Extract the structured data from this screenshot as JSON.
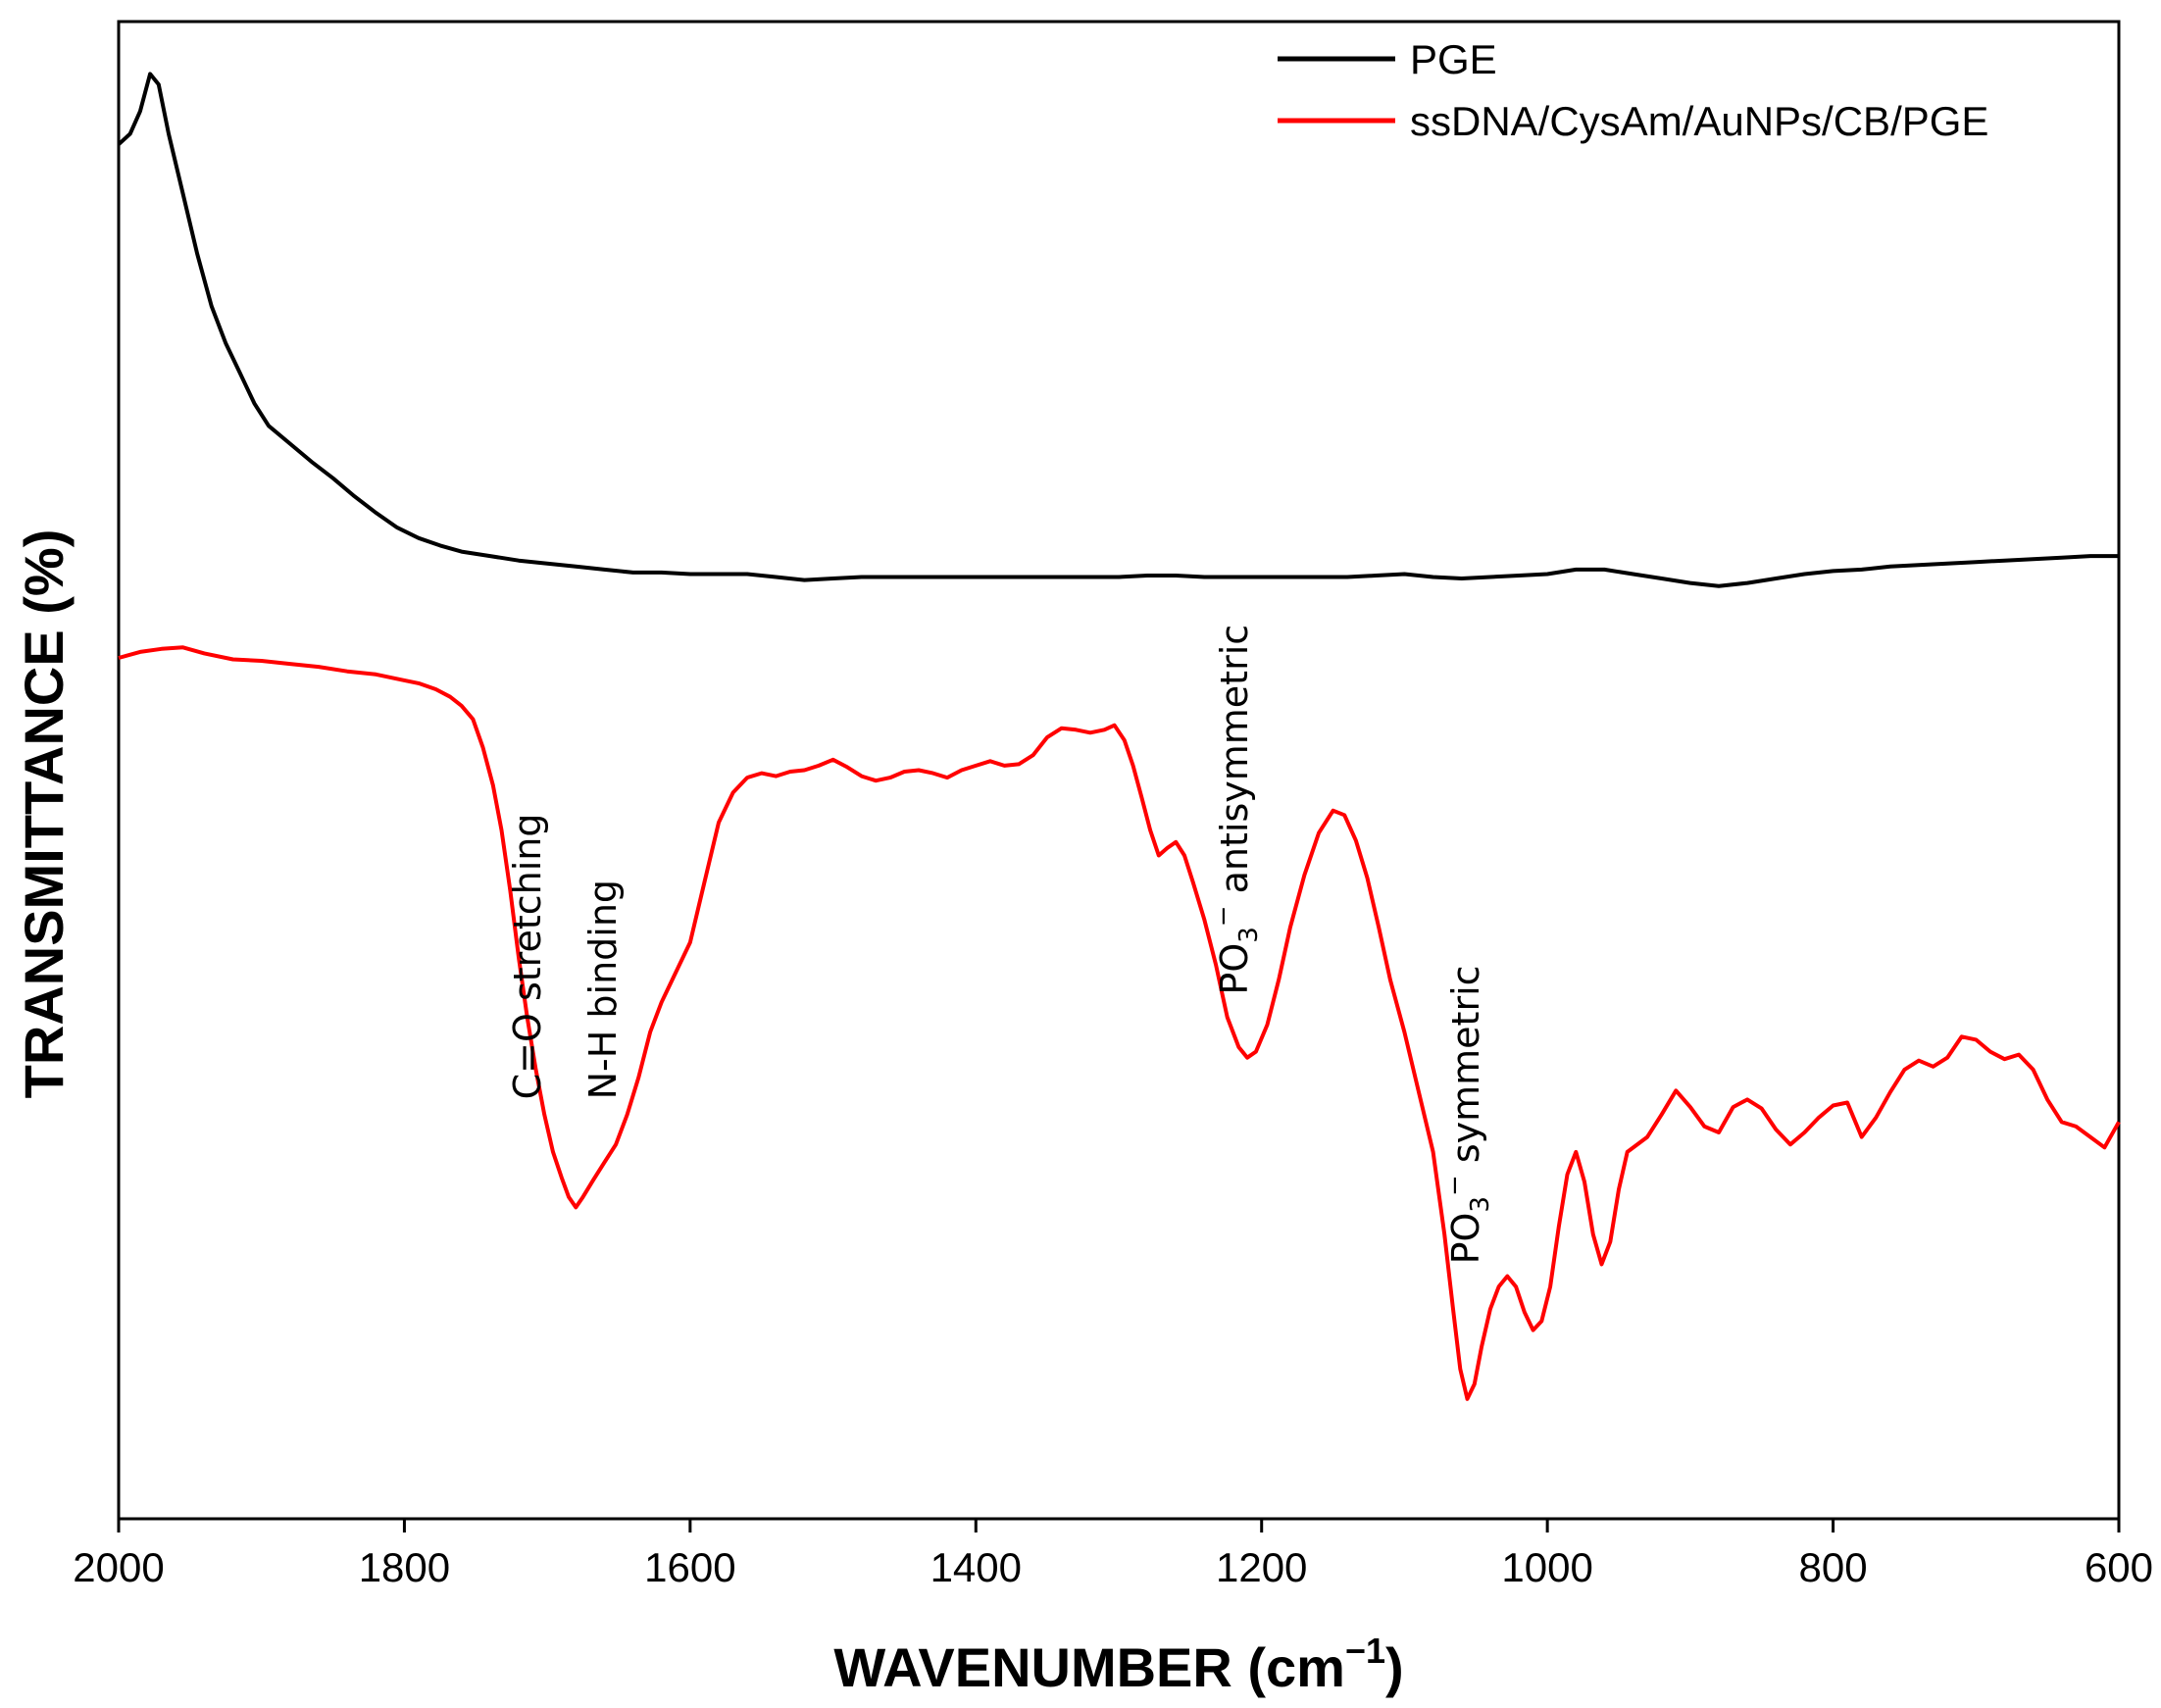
{
  "chart_data": {
    "type": "line",
    "title": "",
    "xlabel": "WAVENUMBER (cm",
    "xlabel_sup": "−1",
    "xlabel_close": ")",
    "ylabel": "TRANSMITTANCE (%)",
    "xlim": [
      2000,
      600
    ],
    "ylim": [
      0,
      100
    ],
    "x_ticks": [
      2000,
      1800,
      1600,
      1400,
      1200,
      1000,
      800,
      600
    ],
    "x_tick_labels": [
      "2000",
      "1800",
      "1600",
      "1400",
      "1200",
      "1000",
      "800",
      "600"
    ],
    "grid": false,
    "legend_position": "top-right",
    "series": [
      {
        "name": "PGE",
        "color": "#000000",
        "points": [
          [
            2000,
            91.8
          ],
          [
            1992,
            92.5
          ],
          [
            1985,
            94.0
          ],
          [
            1978,
            96.5
          ],
          [
            1972,
            95.8
          ],
          [
            1965,
            92.5
          ],
          [
            1955,
            88.5
          ],
          [
            1945,
            84.5
          ],
          [
            1935,
            81.0
          ],
          [
            1925,
            78.5
          ],
          [
            1915,
            76.5
          ],
          [
            1905,
            74.5
          ],
          [
            1895,
            73.0
          ],
          [
            1880,
            71.8
          ],
          [
            1865,
            70.6
          ],
          [
            1850,
            69.5
          ],
          [
            1835,
            68.3
          ],
          [
            1820,
            67.2
          ],
          [
            1805,
            66.2
          ],
          [
            1790,
            65.5
          ],
          [
            1775,
            65.0
          ],
          [
            1760,
            64.6
          ],
          [
            1740,
            64.3
          ],
          [
            1720,
            64.0
          ],
          [
            1700,
            63.8
          ],
          [
            1680,
            63.6
          ],
          [
            1660,
            63.4
          ],
          [
            1640,
            63.2
          ],
          [
            1620,
            63.2
          ],
          [
            1600,
            63.1
          ],
          [
            1580,
            63.1
          ],
          [
            1560,
            63.1
          ],
          [
            1540,
            62.9
          ],
          [
            1520,
            62.7
          ],
          [
            1500,
            62.8
          ],
          [
            1480,
            62.9
          ],
          [
            1460,
            62.9
          ],
          [
            1440,
            62.9
          ],
          [
            1420,
            62.9
          ],
          [
            1400,
            62.9
          ],
          [
            1380,
            62.9
          ],
          [
            1360,
            62.9
          ],
          [
            1340,
            62.9
          ],
          [
            1320,
            62.9
          ],
          [
            1300,
            62.9
          ],
          [
            1280,
            63.0
          ],
          [
            1260,
            63.0
          ],
          [
            1240,
            62.9
          ],
          [
            1220,
            62.9
          ],
          [
            1200,
            62.9
          ],
          [
            1180,
            62.9
          ],
          [
            1160,
            62.9
          ],
          [
            1140,
            62.9
          ],
          [
            1120,
            63.0
          ],
          [
            1100,
            63.1
          ],
          [
            1080,
            62.9
          ],
          [
            1060,
            62.8
          ],
          [
            1040,
            62.9
          ],
          [
            1020,
            63.0
          ],
          [
            1000,
            63.1
          ],
          [
            980,
            63.4
          ],
          [
            960,
            63.4
          ],
          [
            940,
            63.1
          ],
          [
            920,
            62.8
          ],
          [
            900,
            62.5
          ],
          [
            880,
            62.3
          ],
          [
            860,
            62.5
          ],
          [
            840,
            62.8
          ],
          [
            820,
            63.1
          ],
          [
            800,
            63.3
          ],
          [
            780,
            63.4
          ],
          [
            760,
            63.6
          ],
          [
            740,
            63.7
          ],
          [
            720,
            63.8
          ],
          [
            700,
            63.9
          ],
          [
            680,
            64.0
          ],
          [
            660,
            64.1
          ],
          [
            640,
            64.2
          ],
          [
            620,
            64.3
          ],
          [
            600,
            64.3
          ]
        ]
      },
      {
        "name": "ssDNA/CysAm/AuNPs/CB/PGE",
        "color": "#ff0000",
        "points": [
          [
            2000,
            57.5
          ],
          [
            1985,
            57.9
          ],
          [
            1970,
            58.1
          ],
          [
            1955,
            58.2
          ],
          [
            1940,
            57.8
          ],
          [
            1920,
            57.4
          ],
          [
            1900,
            57.3
          ],
          [
            1880,
            57.1
          ],
          [
            1860,
            56.9
          ],
          [
            1840,
            56.6
          ],
          [
            1820,
            56.4
          ],
          [
            1800,
            56.0
          ],
          [
            1790,
            55.8
          ],
          [
            1778,
            55.4
          ],
          [
            1768,
            54.9
          ],
          [
            1760,
            54.3
          ],
          [
            1752,
            53.4
          ],
          [
            1745,
            51.5
          ],
          [
            1738,
            49.0
          ],
          [
            1732,
            46.0
          ],
          [
            1726,
            42.0
          ],
          [
            1720,
            37.5
          ],
          [
            1714,
            33.5
          ],
          [
            1708,
            30.0
          ],
          [
            1702,
            27.0
          ],
          [
            1696,
            24.5
          ],
          [
            1690,
            22.8
          ],
          [
            1685,
            21.5
          ],
          [
            1680,
            20.8
          ],
          [
            1675,
            21.5
          ],
          [
            1668,
            22.6
          ],
          [
            1660,
            23.8
          ],
          [
            1652,
            25.0
          ],
          [
            1644,
            27.0
          ],
          [
            1636,
            29.5
          ],
          [
            1628,
            32.5
          ],
          [
            1620,
            34.5
          ],
          [
            1610,
            36.5
          ],
          [
            1600,
            38.5
          ],
          [
            1590,
            42.5
          ],
          [
            1580,
            46.5
          ],
          [
            1570,
            48.5
          ],
          [
            1560,
            49.5
          ],
          [
            1550,
            49.8
          ],
          [
            1540,
            49.6
          ],
          [
            1530,
            49.9
          ],
          [
            1520,
            50.0
          ],
          [
            1510,
            50.3
          ],
          [
            1500,
            50.7
          ],
          [
            1490,
            50.2
          ],
          [
            1480,
            49.6
          ],
          [
            1470,
            49.3
          ],
          [
            1460,
            49.5
          ],
          [
            1450,
            49.9
          ],
          [
            1440,
            50.0
          ],
          [
            1430,
            49.8
          ],
          [
            1420,
            49.5
          ],
          [
            1410,
            50.0
          ],
          [
            1400,
            50.3
          ],
          [
            1390,
            50.6
          ],
          [
            1380,
            50.3
          ],
          [
            1370,
            50.4
          ],
          [
            1360,
            51.0
          ],
          [
            1350,
            52.2
          ],
          [
            1340,
            52.8
          ],
          [
            1330,
            52.7
          ],
          [
            1320,
            52.5
          ],
          [
            1310,
            52.7
          ],
          [
            1303,
            53.0
          ],
          [
            1296,
            52.0
          ],
          [
            1290,
            50.3
          ],
          [
            1284,
            48.2
          ],
          [
            1278,
            46.0
          ],
          [
            1272,
            44.3
          ],
          [
            1266,
            44.8
          ],
          [
            1260,
            45.2
          ],
          [
            1254,
            44.3
          ],
          [
            1248,
            42.5
          ],
          [
            1240,
            40.0
          ],
          [
            1232,
            37.0
          ],
          [
            1224,
            33.5
          ],
          [
            1216,
            31.5
          ],
          [
            1210,
            30.8
          ],
          [
            1204,
            31.2
          ],
          [
            1196,
            33.0
          ],
          [
            1188,
            36.0
          ],
          [
            1180,
            39.5
          ],
          [
            1170,
            43.0
          ],
          [
            1160,
            45.8
          ],
          [
            1150,
            47.3
          ],
          [
            1142,
            47.0
          ],
          [
            1134,
            45.3
          ],
          [
            1126,
            42.8
          ],
          [
            1118,
            39.5
          ],
          [
            1110,
            36.0
          ],
          [
            1100,
            32.5
          ],
          [
            1090,
            28.5
          ],
          [
            1080,
            24.5
          ],
          [
            1072,
            19.0
          ],
          [
            1066,
            14.0
          ],
          [
            1061,
            10.0
          ],
          [
            1056,
            8.0
          ],
          [
            1051,
            9.0
          ],
          [
            1046,
            11.5
          ],
          [
            1040,
            14.0
          ],
          [
            1034,
            15.5
          ],
          [
            1028,
            16.2
          ],
          [
            1022,
            15.5
          ],
          [
            1016,
            13.8
          ],
          [
            1010,
            12.6
          ],
          [
            1004,
            13.2
          ],
          [
            998,
            15.5
          ],
          [
            992,
            19.5
          ],
          [
            986,
            23.0
          ],
          [
            980,
            24.5
          ],
          [
            974,
            22.5
          ],
          [
            968,
            19.0
          ],
          [
            962,
            17.0
          ],
          [
            956,
            18.5
          ],
          [
            950,
            22.0
          ],
          [
            944,
            24.5
          ],
          [
            930,
            25.5
          ],
          [
            920,
            27.0
          ],
          [
            910,
            28.6
          ],
          [
            900,
            27.5
          ],
          [
            890,
            26.2
          ],
          [
            880,
            25.8
          ],
          [
            870,
            27.5
          ],
          [
            860,
            28.0
          ],
          [
            850,
            27.4
          ],
          [
            840,
            26.0
          ],
          [
            830,
            25.0
          ],
          [
            820,
            25.8
          ],
          [
            810,
            26.8
          ],
          [
            800,
            27.6
          ],
          [
            790,
            27.8
          ],
          [
            780,
            25.5
          ],
          [
            770,
            26.8
          ],
          [
            760,
            28.5
          ],
          [
            750,
            30.0
          ],
          [
            740,
            30.6
          ],
          [
            730,
            30.2
          ],
          [
            720,
            30.8
          ],
          [
            710,
            32.2
          ],
          [
            700,
            32.0
          ],
          [
            690,
            31.2
          ],
          [
            680,
            30.7
          ],
          [
            670,
            31.0
          ],
          [
            660,
            30.0
          ],
          [
            650,
            28.0
          ],
          [
            640,
            26.5
          ],
          [
            630,
            26.2
          ],
          [
            620,
            25.5
          ],
          [
            610,
            24.8
          ],
          [
            600,
            26.5
          ]
        ]
      }
    ],
    "annotations": [
      {
        "text": "C=O stretching",
        "x": 1705,
        "y": 28
      },
      {
        "text": "N-H binding",
        "x": 1652,
        "y": 28
      },
      {
        "text": "PO",
        "sub": "3",
        "sup": "−",
        "rest": " antisymmetric",
        "x": 1210,
        "y": 35
      },
      {
        "text": "PO",
        "sub": "3",
        "sup": "−",
        "rest": " symmetric",
        "x": 1048,
        "y": 17
      }
    ]
  }
}
